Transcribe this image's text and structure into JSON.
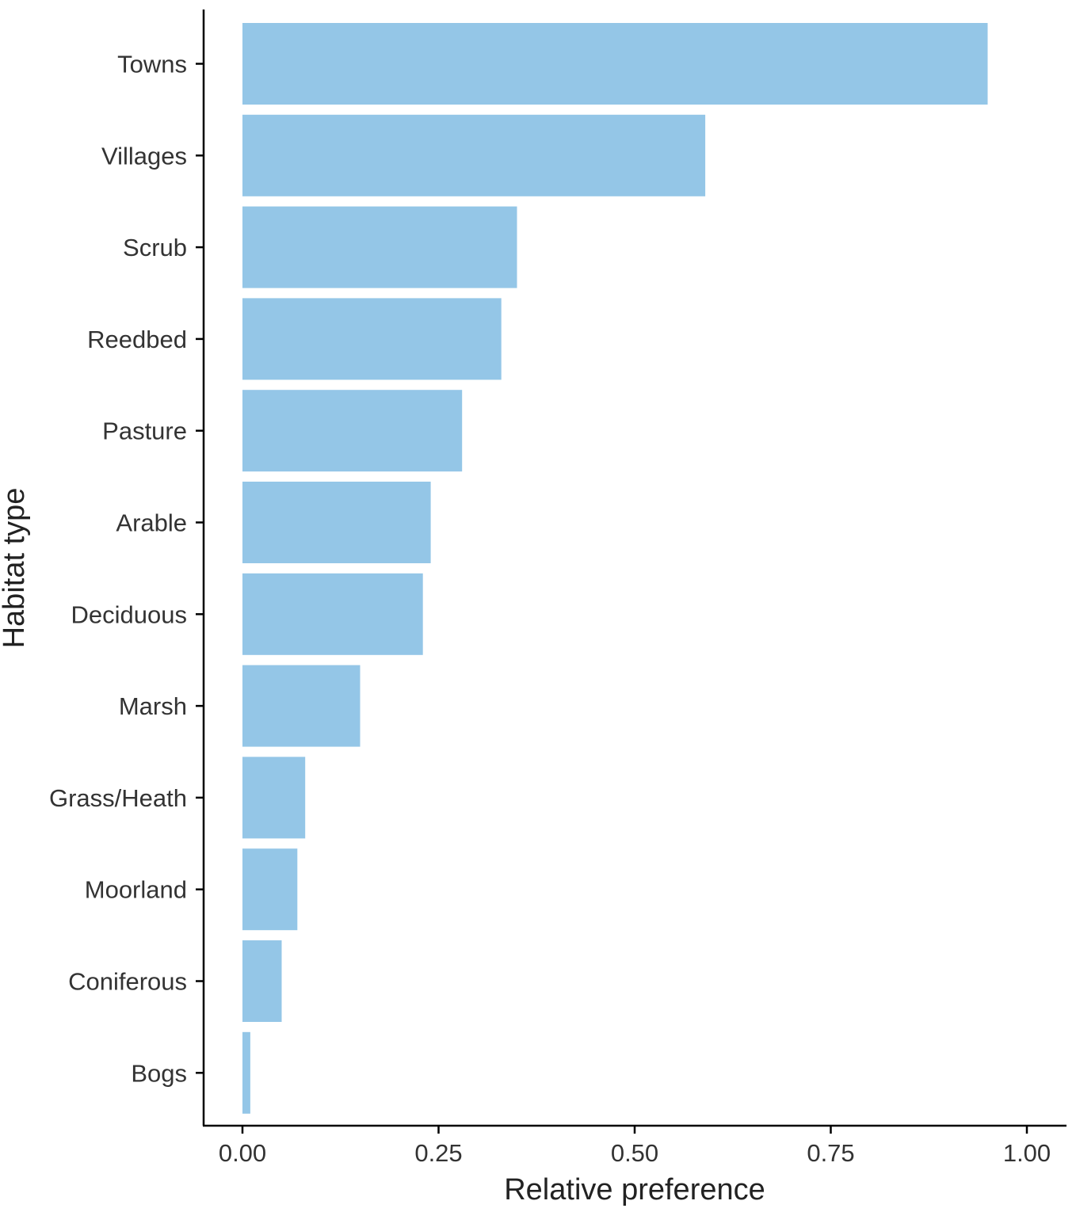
{
  "chart_data": {
    "type": "bar",
    "orientation": "horizontal",
    "title": "",
    "xlabel": "Relative preference",
    "ylabel": "Habitat type",
    "categories": [
      "Towns",
      "Villages",
      "Scrub",
      "Reedbed",
      "Pasture",
      "Arable",
      "Deciduous",
      "Marsh",
      "Grass/Heath",
      "Moorland",
      "Coniferous",
      "Bogs"
    ],
    "values": [
      0.95,
      0.59,
      0.35,
      0.33,
      0.28,
      0.24,
      0.23,
      0.15,
      0.08,
      0.07,
      0.05,
      0.01
    ],
    "xlim": [
      0,
      1.0
    ],
    "xticks": [
      0,
      0.25,
      0.5,
      0.75,
      1.0
    ],
    "xtick_labels": [
      "0.00",
      "0.25",
      "0.50",
      "0.75",
      "1.00"
    ],
    "bar_color": "#94C6E7",
    "axis_color": "#000000",
    "grid": false,
    "legend": "none"
  }
}
